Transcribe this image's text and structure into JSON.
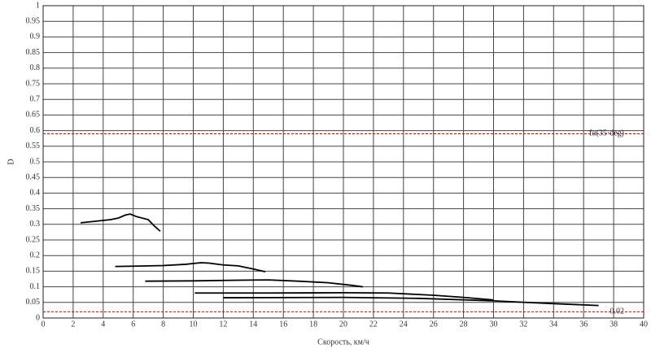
{
  "chart_data": {
    "type": "line",
    "xlabel": "Скорость, км/ч",
    "ylabel": "D",
    "xlim": [
      0,
      40
    ],
    "ylim": [
      0,
      1
    ],
    "xticks": [
      0,
      2,
      4,
      6,
      8,
      10,
      12,
      14,
      16,
      18,
      20,
      22,
      24,
      26,
      28,
      30,
      32,
      34,
      36,
      38,
      40
    ],
    "yticks": [
      0,
      0.05,
      0.1,
      0.15,
      0.2,
      0.25,
      0.3,
      0.35,
      0.4,
      0.45,
      0.5,
      0.55,
      0.6,
      0.65,
      0.7,
      0.75,
      0.8,
      0.85,
      0.9,
      0.95,
      1
    ],
    "grid": true,
    "series": [
      {
        "color": "#000000",
        "x": [
          2.5,
          3.5,
          4.5,
          5,
          5.5,
          5.8,
          6.2,
          7,
          7.4,
          7.8
        ],
        "values": [
          0.305,
          0.31,
          0.315,
          0.32,
          0.33,
          0.333,
          0.325,
          0.315,
          0.295,
          0.278
        ]
      },
      {
        "color": "#000000",
        "x": [
          4.8,
          6,
          8,
          9.5,
          10.5,
          11,
          12,
          13,
          14,
          14.8
        ],
        "values": [
          0.165,
          0.166,
          0.168,
          0.172,
          0.177,
          0.176,
          0.17,
          0.167,
          0.157,
          0.148
        ]
      },
      {
        "color": "#000000",
        "x": [
          6.8,
          10,
          13,
          15,
          17,
          19,
          20.5,
          21.3
        ],
        "values": [
          0.118,
          0.119,
          0.121,
          0.122,
          0.118,
          0.113,
          0.105,
          0.1
        ]
      },
      {
        "color": "#000000",
        "x": [
          10.1,
          15,
          20,
          23,
          26,
          28,
          30
        ],
        "values": [
          0.08,
          0.08,
          0.081,
          0.08,
          0.073,
          0.066,
          0.058
        ]
      },
      {
        "color": "#000000",
        "x": [
          12,
          20,
          25,
          30,
          34,
          37
        ],
        "values": [
          0.065,
          0.066,
          0.063,
          0.055,
          0.046,
          0.04
        ]
      }
    ],
    "hlines": [
      {
        "value": 0.59,
        "label": "fα(35·deg)",
        "color": "#cc0000"
      },
      {
        "value": 0.02,
        "label": "0.02",
        "color": "#cc0000"
      }
    ]
  }
}
